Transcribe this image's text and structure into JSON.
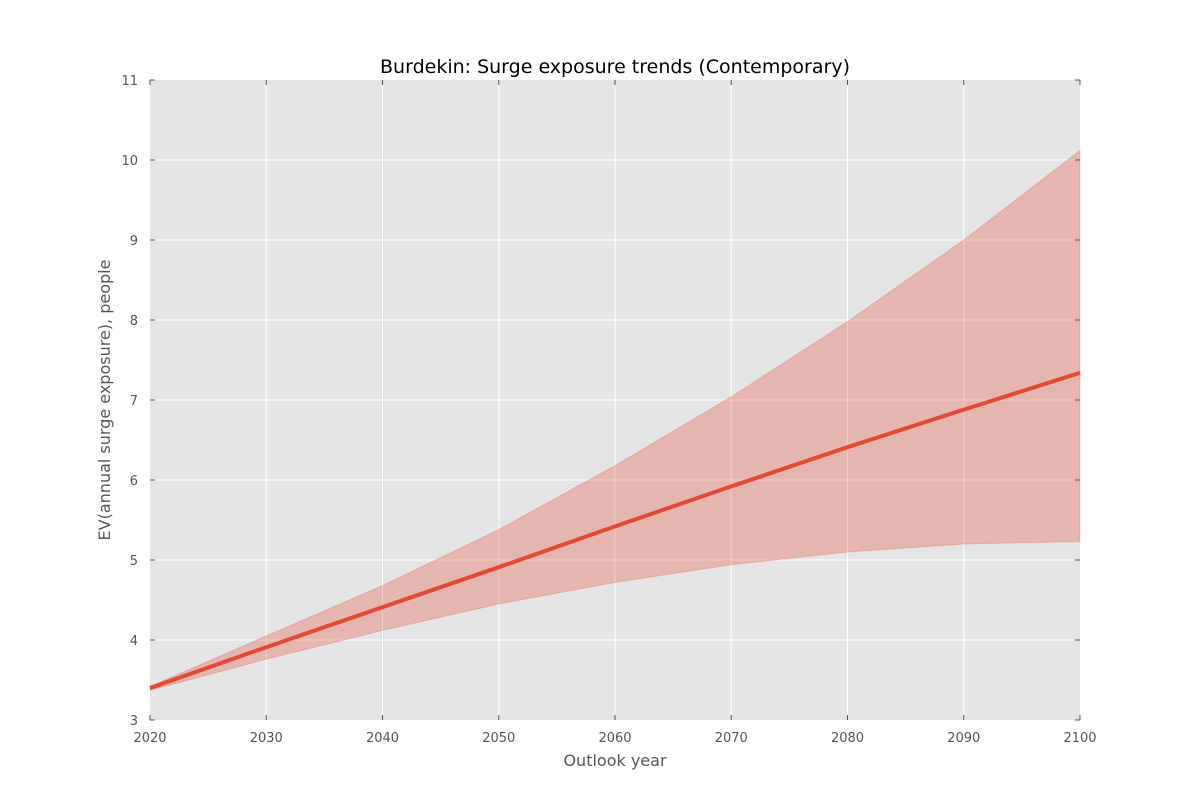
{
  "chart_data": {
    "type": "line",
    "title": "Burdekin: Surge exposure trends (Contemporary)",
    "xlabel": "Outlook year",
    "ylabel": "EV(annual surge exposure), people",
    "xlim": [
      2020,
      2100
    ],
    "ylim": [
      3,
      11
    ],
    "x_ticks": [
      2020,
      2030,
      2040,
      2050,
      2060,
      2070,
      2080,
      2090,
      2100
    ],
    "y_ticks": [
      3,
      4,
      5,
      6,
      7,
      8,
      9,
      10,
      11
    ],
    "grid": true,
    "legend": "none",
    "colors": {
      "plot_background": "#e5e5e5",
      "grid": "#ffffff",
      "line": "#e24a33",
      "band": "#e24a33"
    },
    "x": [
      2020,
      2030,
      2040,
      2050,
      2060,
      2070,
      2080,
      2090,
      2100
    ],
    "series": [
      {
        "values": [
          3.4,
          3.91,
          4.41,
          4.91,
          5.42,
          5.92,
          6.41,
          6.88,
          7.34
        ],
        "lower": [
          3.37,
          3.76,
          4.12,
          4.45,
          4.72,
          4.94,
          5.1,
          5.2,
          5.23
        ],
        "upper": [
          3.42,
          4.05,
          4.68,
          5.38,
          6.18,
          7.04,
          7.98,
          9.0,
          10.12
        ]
      }
    ]
  }
}
